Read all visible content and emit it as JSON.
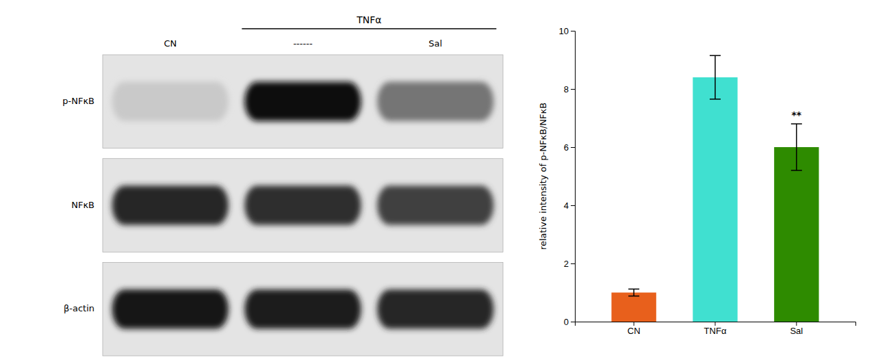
{
  "chart_data": [
    {
      "type": "heatmap",
      "categories": [
        "CN",
        "------",
        "Sal"
      ],
      "series": [
        {
          "name": "p-NFκB",
          "values": [
            0.32,
            0.95,
            0.62
          ]
        },
        {
          "name": "NFκB",
          "values": [
            0.88,
            0.85,
            0.8
          ]
        },
        {
          "name": "β-actin",
          "values": [
            0.92,
            0.9,
            0.87
          ]
        }
      ],
      "annotations": [
        {
          "text": "TNFα",
          "categories": [
            "------",
            "Sal"
          ]
        }
      ]
    },
    {
      "type": "bar",
      "categories": [
        "CN",
        "TNFα",
        "Sal"
      ],
      "values": [
        1.0,
        8.4,
        6.0
      ],
      "errors": [
        0.12,
        0.75,
        0.8
      ],
      "colors": [
        "#E8601C",
        "#40E0D0",
        "#2E8B00"
      ],
      "y_label": "relative intensity of p-NFκB/NFκB",
      "ylim": [
        0,
        10
      ],
      "yticks": [
        0,
        2,
        4,
        6,
        8,
        10
      ],
      "grid": false,
      "annotations": [
        {
          "text": "**",
          "category": "Sal"
        }
      ]
    }
  ]
}
